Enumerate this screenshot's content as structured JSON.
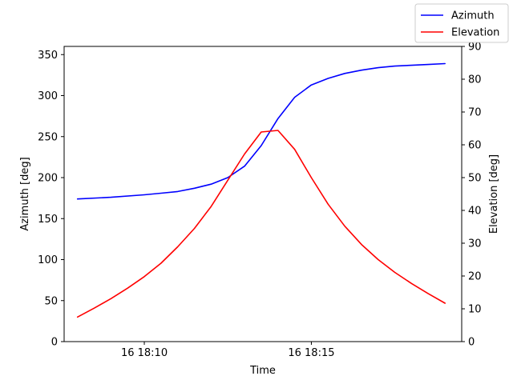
{
  "chart_data": {
    "type": "line",
    "title": "",
    "xlabel": "Time",
    "ylabel_left": "Azimuth [deg]",
    "ylabel_right": "Elevation [deg]",
    "x_unit": "minutes past 16 18:00",
    "x_range": [
      7.6,
      19.5
    ],
    "ylim_left": [
      0,
      360
    ],
    "ylim_right": [
      0,
      90
    ],
    "x_ticks": [
      {
        "value": 10,
        "label": "16 18:10"
      },
      {
        "value": 15,
        "label": "16 18:15"
      }
    ],
    "y_ticks_left": [
      0,
      50,
      100,
      150,
      200,
      250,
      300,
      350
    ],
    "y_ticks_right": [
      0,
      10,
      20,
      30,
      40,
      50,
      60,
      70,
      80,
      90
    ],
    "grid": false,
    "legend_position": "top-right",
    "series": [
      {
        "name": "Azimuth",
        "axis": "left",
        "color": "#0000ff",
        "x": [
          8.0,
          9.0,
          10.0,
          10.5,
          11.0,
          11.5,
          12.0,
          12.5,
          13.0,
          13.5,
          14.0,
          14.5,
          15.0,
          15.5,
          16.0,
          16.5,
          17.0,
          17.5,
          18.0,
          18.5,
          19.0
        ],
        "values": [
          174,
          176,
          179,
          181,
          183,
          187,
          192,
          200,
          214,
          239,
          272,
          298,
          313,
          321,
          327,
          331,
          334,
          336,
          337,
          338,
          339
        ]
      },
      {
        "name": "Elevation",
        "axis": "right",
        "color": "#ff0000",
        "x": [
          8.0,
          8.5,
          9.0,
          9.5,
          10.0,
          10.5,
          11.0,
          11.5,
          12.0,
          12.5,
          13.0,
          13.5,
          14.0,
          14.5,
          15.0,
          15.5,
          16.0,
          16.5,
          17.0,
          17.5,
          18.0,
          18.5,
          19.0
        ],
        "values": [
          7.5,
          10.2,
          13.1,
          16.3,
          19.8,
          23.9,
          28.9,
          34.5,
          41.2,
          49.2,
          57.2,
          63.9,
          64.4,
          58.6,
          50.0,
          41.9,
          35.2,
          29.6,
          25.0,
          21.1,
          17.7,
          14.6,
          11.7
        ]
      }
    ]
  }
}
